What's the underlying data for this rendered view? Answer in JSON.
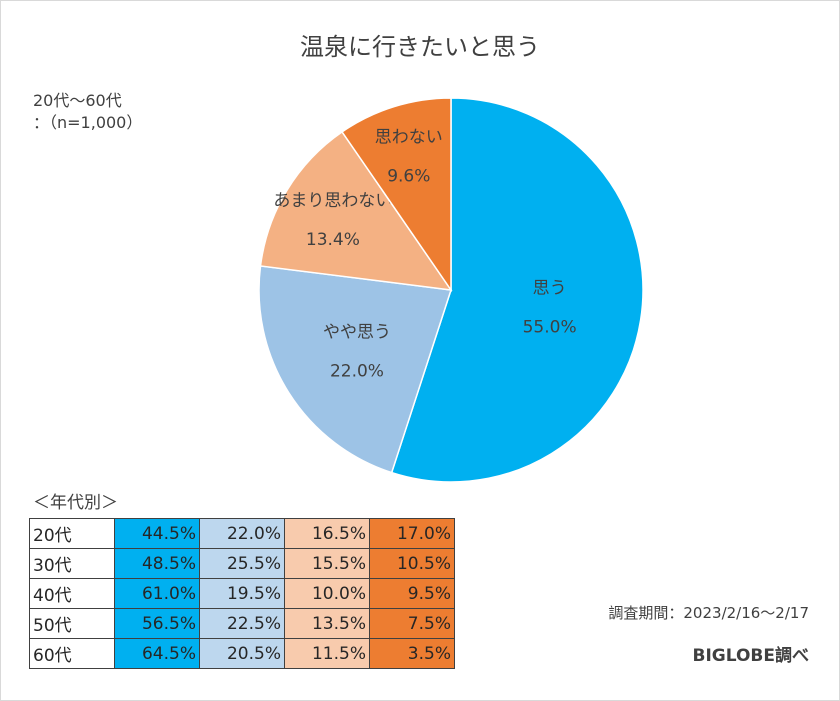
{
  "chart_data": {
    "type": "pie",
    "title": "温泉に行きたいと思う",
    "categories": [
      "思う",
      "やや思う",
      "あまり思わない",
      "思わない"
    ],
    "values": [
      55.0,
      22.0,
      13.4,
      9.6
    ],
    "value_labels": [
      "55.0%",
      "22.0%",
      "13.4%",
      "9.6%"
    ],
    "colors": [
      "#00b0f0",
      "#9dc3e6",
      "#f4b183",
      "#ed7d31"
    ],
    "legend": "none",
    "start": "12 o'clock, clockwise"
  },
  "sample": {
    "line1": "20代～60代",
    "line2": "：（n=1,000）"
  },
  "by_age": {
    "heading": "＜年代別＞",
    "rows": [
      {
        "age": "20代",
        "values": [
          "44.5%",
          "22.0%",
          "16.5%",
          "17.0%"
        ]
      },
      {
        "age": "30代",
        "values": [
          "48.5%",
          "25.5%",
          "15.5%",
          "10.5%"
        ]
      },
      {
        "age": "40代",
        "values": [
          "61.0%",
          "19.5%",
          "10.0%",
          "9.5%"
        ]
      },
      {
        "age": "50代",
        "values": [
          "56.5%",
          "22.5%",
          "13.5%",
          "7.5%"
        ]
      },
      {
        "age": "60代",
        "values": [
          "64.5%",
          "20.5%",
          "11.5%",
          "3.5%"
        ]
      }
    ],
    "cell_colors": [
      "#00b0f0",
      "#bdd7ee",
      "#f8cbad",
      "#ed7d31"
    ]
  },
  "footer": {
    "survey_period": "調査期間：2023/2/16～2/17",
    "source": "BIGLOBE調べ"
  }
}
